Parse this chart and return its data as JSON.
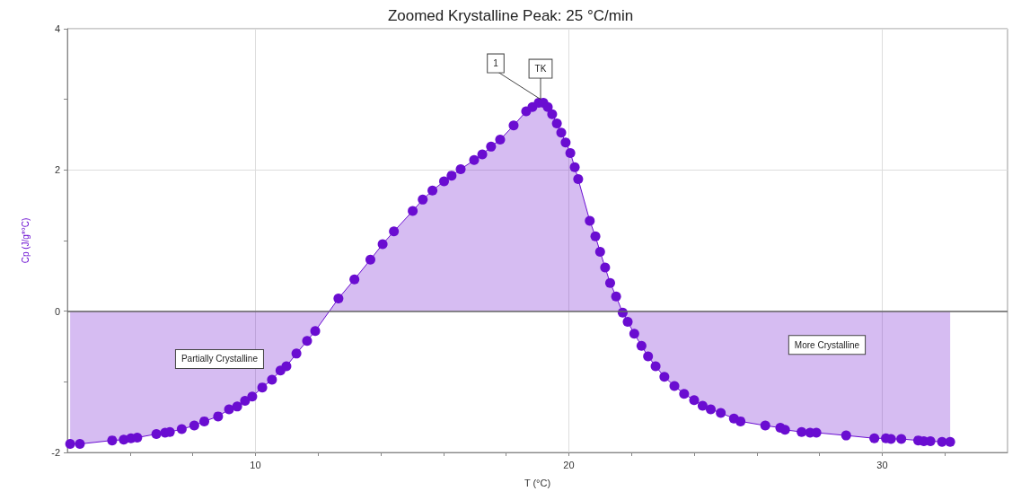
{
  "chart_data": {
    "type": "area",
    "title": "Zoomed Krystalline Peak: 25 °C/min",
    "xlabel": "T (°C)",
    "ylabel": "Cp (J/g*°C)",
    "annotations": [
      {
        "text": "1",
        "x": 19.1,
        "y": 2.95
      },
      {
        "text": "TK",
        "x": 19.1,
        "y": 2.95
      },
      "Partially Crystalline",
      "More Crystalline"
    ],
    "series": [
      {
        "color": "#6a0dd1",
        "x": [
          4.09,
          4.4,
          5.43,
          5.8,
          6.03,
          6.23,
          6.84,
          7.12,
          7.27,
          7.65,
          8.05,
          8.37,
          8.81,
          9.16,
          9.42,
          9.67,
          9.9,
          10.22,
          10.53,
          10.8,
          10.99,
          11.31,
          11.65,
          11.91,
          12.65,
          13.16,
          13.67,
          14.06,
          14.42,
          15.02,
          15.34,
          15.65,
          16.02,
          16.26,
          16.55,
          16.98,
          17.24,
          17.52,
          17.81,
          18.24,
          18.64,
          18.84,
          19.04,
          19.19,
          19.33,
          19.47,
          19.62,
          19.76,
          19.9,
          20.05,
          20.19,
          20.3,
          20.67,
          20.85,
          21.0,
          21.16,
          21.32,
          21.51,
          21.72,
          21.88,
          22.09,
          22.32,
          22.53,
          22.77,
          23.05,
          23.37,
          23.68,
          24.0,
          24.27,
          24.53,
          24.85,
          25.27,
          25.48,
          26.27,
          26.75,
          26.9,
          27.43,
          27.7,
          27.9,
          28.85,
          29.75,
          30.12,
          30.28,
          30.61,
          31.15,
          31.33,
          31.54,
          31.91,
          32.17
        ],
        "values": [
          -1.88,
          -1.88,
          -1.83,
          -1.82,
          -1.8,
          -1.79,
          -1.74,
          -1.72,
          -1.71,
          -1.67,
          -1.62,
          -1.56,
          -1.49,
          -1.39,
          -1.35,
          -1.27,
          -1.21,
          -1.08,
          -0.97,
          -0.84,
          -0.78,
          -0.6,
          -0.42,
          -0.28,
          0.18,
          0.45,
          0.73,
          0.95,
          1.13,
          1.42,
          1.58,
          1.71,
          1.84,
          1.92,
          2.01,
          2.14,
          2.22,
          2.33,
          2.43,
          2.63,
          2.83,
          2.89,
          2.95,
          2.95,
          2.89,
          2.79,
          2.66,
          2.53,
          2.39,
          2.24,
          2.04,
          1.87,
          1.28,
          1.06,
          0.84,
          0.62,
          0.4,
          0.21,
          -0.02,
          -0.15,
          -0.32,
          -0.49,
          -0.64,
          -0.78,
          -0.93,
          -1.06,
          -1.17,
          -1.26,
          -1.34,
          -1.39,
          -1.44,
          -1.52,
          -1.56,
          -1.62,
          -1.65,
          -1.68,
          -1.71,
          -1.72,
          -1.72,
          -1.76,
          -1.8,
          -1.8,
          -1.81,
          -1.81,
          -1.83,
          -1.84,
          -1.84,
          -1.85,
          -1.85
        ]
      }
    ],
    "xlim": [
      4,
      34
    ],
    "xticks": [
      {
        "value": 6,
        "label": null
      },
      {
        "value": 8,
        "label": null
      },
      10,
      {
        "value": 12,
        "label": null
      },
      {
        "value": 14,
        "label": null
      },
      {
        "value": 16,
        "label": null
      },
      {
        "value": 18,
        "label": null
      },
      20,
      {
        "value": 22,
        "label": null
      },
      {
        "value": 24,
        "label": null
      },
      {
        "value": 26,
        "label": null
      },
      {
        "value": 28,
        "label": null
      },
      30,
      {
        "value": 32,
        "label": null
      }
    ],
    "ylim": [
      -2,
      4
    ],
    "yticks": [
      -2,
      {
        "value": -1,
        "label": null
      },
      0,
      {
        "value": 1,
        "label": null
      },
      2,
      {
        "value": 3,
        "label": null
      },
      4
    ],
    "ref_lines": [
      {
        "axis": "y",
        "value": 0,
        "label": null,
        "color": "#666666"
      }
    ],
    "grid": true,
    "marker": "circle"
  }
}
